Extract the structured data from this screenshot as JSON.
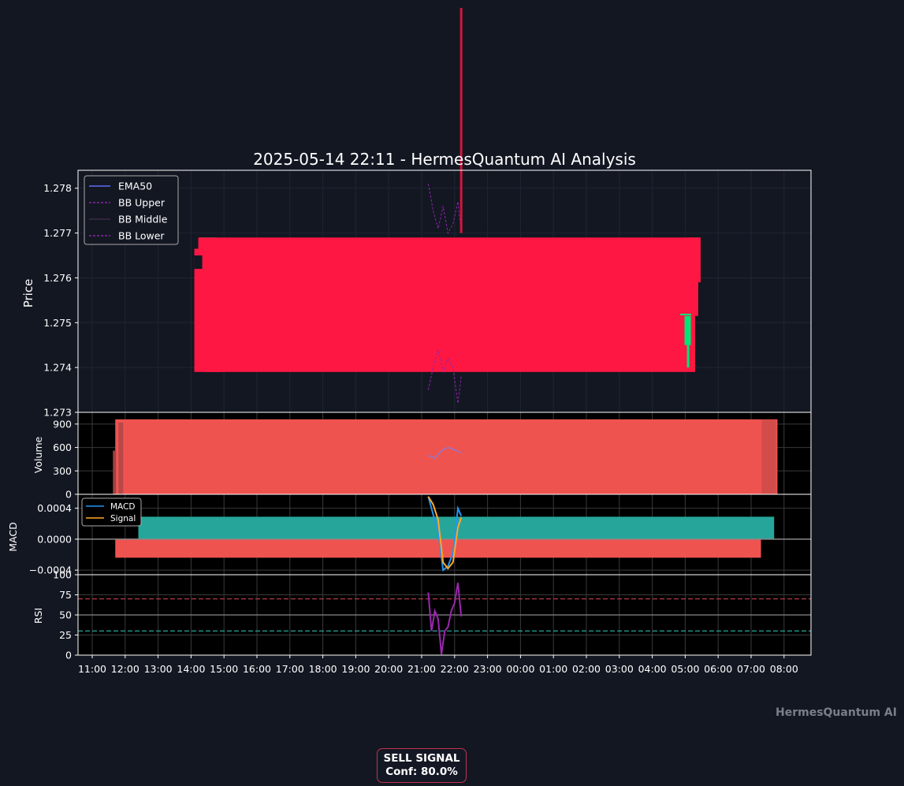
{
  "chart_data": [
    {
      "panel": "price",
      "type": "candlestick",
      "title": "2025-05-14 22:11 - HermesQuantum AI Analysis",
      "ylabel": "Price",
      "ylim": [
        1.273,
        1.2784
      ],
      "yticks": [
        "1.273",
        "1.274",
        "1.275",
        "1.276",
        "1.277",
        "1.278"
      ],
      "grid": true,
      "legend": {
        "position": "top-left",
        "entries": [
          "EMA50",
          "BB Upper",
          "BB Middle",
          "BB Lower"
        ]
      },
      "series": [
        {
          "name": "EMA50",
          "values": []
        },
        {
          "name": "BB Upper",
          "x": [
            21.2,
            21.35,
            21.5,
            21.65,
            21.8,
            21.95,
            22.1,
            22.2
          ],
          "values": [
            1.2781,
            1.2775,
            1.2771,
            1.2776,
            1.277,
            1.2772,
            1.2777,
            1.277
          ]
        },
        {
          "name": "BB Middle",
          "values": []
        },
        {
          "name": "BB Lower",
          "x": [
            21.2,
            21.35,
            21.5,
            21.65,
            21.8,
            21.95,
            22.1,
            22.2
          ],
          "values": [
            1.2735,
            1.274,
            1.2744,
            1.2739,
            1.2742,
            1.274,
            1.2732,
            1.2738
          ]
        }
      ],
      "candles": {
        "start": 14.1,
        "end": 5.3,
        "open": 1.2769,
        "close": 1.2739,
        "spike_high": 1.2992,
        "spike_at": 22.2,
        "direction": "down"
      },
      "colors": {
        "down": "#ff1744",
        "up": "#00e676",
        "spike": "#d4163c",
        "bb": "#8e24aa",
        "ema": "#5c6ef8"
      }
    },
    {
      "panel": "volume",
      "type": "bar",
      "ylabel": "Volume",
      "ylim": [
        0,
        1050
      ],
      "yticks": [
        "0",
        "300",
        "600",
        "900"
      ],
      "values": {
        "start": 11.7,
        "end": 7.8,
        "level": 960
      },
      "overlay": {
        "x": [
          21.2,
          21.4,
          21.6,
          21.8,
          22.0,
          22.2
        ],
        "values": [
          500,
          460,
          560,
          600,
          570,
          530
        ]
      },
      "colors": {
        "bar": "#ef5350",
        "overlay": "#9575cd"
      }
    },
    {
      "panel": "macd",
      "type": "line",
      "ylabel": "MACD",
      "ylim": [
        -0.00046,
        0.00058
      ],
      "yticks": [
        "−0.0004",
        "0.0000",
        "0.0004"
      ],
      "legend": {
        "position": "top-left",
        "entries": [
          "MACD",
          "Signal"
        ]
      },
      "series": [
        {
          "name": "MACD",
          "x": [
            21.2,
            21.35,
            21.5,
            21.65,
            21.8,
            21.95,
            22.1,
            22.2
          ],
          "values": [
            0.00055,
            0.00032,
            0.0001,
            -0.0004,
            -0.00035,
            -0.00018,
            0.0004,
            0.0003
          ]
        },
        {
          "name": "Signal",
          "x": [
            21.2,
            21.35,
            21.5,
            21.65,
            21.8,
            21.95,
            22.1,
            22.2
          ],
          "values": [
            0.00055,
            0.00045,
            0.00025,
            -0.0003,
            -0.00038,
            -0.0003,
            0.00015,
            0.00028
          ]
        }
      ],
      "histogram": {
        "pos_start": 12.4,
        "pos_end": 7.7,
        "pos_level": 0.00029,
        "neg_start": 11.7,
        "neg_end": 7.3,
        "neg_level": -0.00024
      },
      "colors": {
        "macd": "#2196f3",
        "signal": "#ffa726",
        "pos": "#26a69a",
        "neg": "#ef5350"
      }
    },
    {
      "panel": "rsi",
      "type": "line",
      "ylabel": "RSI",
      "ylim": [
        0,
        100
      ],
      "yticks": [
        "0",
        "25",
        "50",
        "75",
        "100"
      ],
      "levels": [
        70,
        50,
        30
      ],
      "series": [
        {
          "name": "RSI",
          "x": [
            21.2,
            21.3,
            21.4,
            21.5,
            21.6,
            21.7,
            21.8,
            21.9,
            22.0,
            22.1,
            22.2
          ],
          "values": [
            78,
            30,
            55,
            45,
            1,
            30,
            35,
            55,
            65,
            90,
            48
          ]
        }
      ],
      "xticks": [
        "11:00",
        "12:00",
        "13:00",
        "14:00",
        "15:00",
        "16:00",
        "17:00",
        "18:00",
        "19:00",
        "20:00",
        "21:00",
        "22:00",
        "23:00",
        "00:00",
        "01:00",
        "02:00",
        "03:00",
        "04:00",
        "05:00",
        "06:00",
        "07:00",
        "08:00"
      ],
      "colors": {
        "rsi": "#9c27b0",
        "overbought": "#b03a48",
        "oversold": "#26a69a"
      }
    }
  ],
  "signal": {
    "line1": "SELL SIGNAL",
    "line2": "Conf: 80.0%"
  },
  "watermark": "HermesQuantum AI"
}
